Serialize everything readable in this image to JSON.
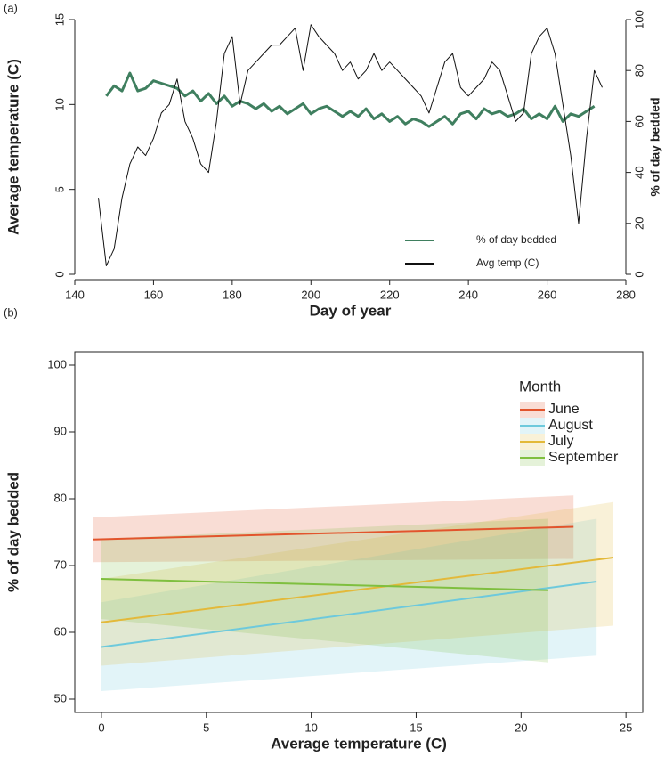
{
  "chart_data": [
    {
      "type": "line",
      "panel": "(a)",
      "x_label": "Day of year",
      "y_label": "Average temperature (C)",
      "y2_label": "% of day bedded",
      "xlim": [
        140,
        280
      ],
      "xticks": [
        140,
        160,
        180,
        200,
        220,
        240,
        260,
        280
      ],
      "ylim": [
        0,
        15
      ],
      "yticks": [
        0,
        5,
        10,
        15
      ],
      "y2lim": [
        0,
        100
      ],
      "y2ticks": [
        0,
        20,
        40,
        60,
        80,
        100
      ],
      "legend": "bottom-right",
      "x": [
        146,
        148,
        150,
        152,
        154,
        156,
        158,
        160,
        162,
        164,
        166,
        168,
        170,
        172,
        174,
        176,
        178,
        180,
        182,
        184,
        186,
        188,
        190,
        192,
        194,
        196,
        198,
        200,
        202,
        204,
        206,
        208,
        210,
        212,
        214,
        216,
        218,
        220,
        222,
        224,
        226,
        228,
        230,
        232,
        234,
        236,
        238,
        240,
        242,
        244,
        246,
        248,
        250,
        252,
        254,
        256,
        258,
        260,
        262,
        264,
        266,
        268,
        270,
        272,
        274
      ],
      "series": [
        {
          "name": "% of day bedded",
          "color": "#3f7f5f",
          "axis": "y2",
          "width": 3,
          "values": [
            null,
            70,
            74,
            72,
            79,
            72,
            73,
            76,
            75,
            74,
            73,
            70,
            72,
            68,
            71,
            67,
            70,
            66,
            68,
            67,
            65,
            67,
            64,
            66,
            63,
            65,
            67,
            63,
            65,
            66,
            64,
            62,
            64,
            62,
            65,
            61,
            63,
            60,
            62,
            59,
            61,
            60,
            58,
            60,
            62,
            59,
            63,
            64,
            61,
            65,
            63,
            64,
            62,
            63,
            65,
            61,
            63,
            61,
            66,
            60,
            63,
            62,
            64,
            66,
            null
          ]
        },
        {
          "name": "Avg temp (C)",
          "color": "#111111",
          "axis": "y",
          "width": 1,
          "values": [
            4.5,
            0.5,
            1.5,
            4.5,
            6.5,
            7.5,
            7,
            8,
            9.5,
            10,
            11.5,
            9,
            8,
            6.5,
            6,
            9,
            13,
            14,
            10,
            12,
            12.5,
            13,
            13.5,
            13.5,
            14,
            14.5,
            12,
            14.7,
            14,
            13.5,
            13,
            12,
            12.5,
            11.5,
            12,
            13,
            12,
            12.5,
            12,
            11.5,
            11,
            10.5,
            9.5,
            11,
            12.5,
            13,
            11,
            10.5,
            11,
            11.5,
            12.5,
            12,
            10.5,
            9,
            9.5,
            13,
            14,
            14.5,
            13,
            10,
            7,
            3,
            8,
            12,
            11
          ]
        }
      ]
    },
    {
      "type": "line",
      "panel": "(b)",
      "x_label": "Average temperature (C)",
      "y_label": "% of day bedded",
      "legend_title": "Month",
      "xlim": [
        -1.27,
        25.8
      ],
      "xticks": [
        0,
        5,
        10,
        15,
        20,
        25
      ],
      "ylim": [
        48,
        102
      ],
      "yticks": [
        50,
        60,
        70,
        80,
        90,
        100
      ],
      "legend": "top-right",
      "series": [
        {
          "name": "June",
          "color": "#e2542c",
          "x": [
            -0.4,
            22.5
          ],
          "values": [
            73.9,
            75.8
          ],
          "lower": [
            70.5,
            71
          ],
          "upper": [
            77.2,
            80.5
          ]
        },
        {
          "name": "August",
          "color": "#6dc9dc",
          "x": [
            0,
            23.6
          ],
          "values": [
            57.8,
            67.6
          ],
          "lower": [
            51.2,
            56.5
          ],
          "upper": [
            64.5,
            77
          ]
        },
        {
          "name": "July",
          "color": "#e3b93a",
          "x": [
            0,
            24.4
          ],
          "values": [
            61.5,
            71.2
          ],
          "lower": [
            55,
            61
          ],
          "upper": [
            68,
            79.5
          ]
        },
        {
          "name": "September",
          "color": "#7fbf3f",
          "x": [
            0,
            21.3
          ],
          "values": [
            68,
            66.3
          ],
          "lower": [
            62,
            55.5
          ],
          "upper": [
            74,
            77
          ]
        }
      ]
    }
  ]
}
